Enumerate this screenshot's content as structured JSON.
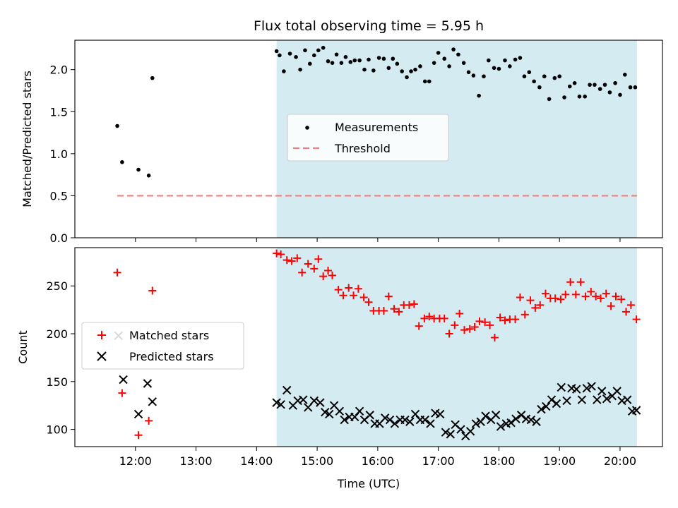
{
  "chart_data": {
    "title": "Flux total observing time = 5.95 h",
    "xlabel": "Time (UTC)",
    "x_unit": "hours UTC",
    "xlim": [
      11.0,
      20.7
    ],
    "xticks": [
      12,
      13,
      14,
      15,
      16,
      17,
      18,
      19,
      20
    ],
    "xtick_labels": [
      "12:00",
      "13:00",
      "14:00",
      "15:00",
      "16:00",
      "17:00",
      "18:00",
      "19:00",
      "20:00"
    ],
    "shaded_region": {
      "x": [
        14.33,
        20.28
      ],
      "color": "#d4ebf2"
    },
    "panels": [
      {
        "type": "scatter",
        "ylabel": "Matched/Predicted stars",
        "ylim": [
          0,
          2.35
        ],
        "yticks": [
          0.0,
          0.5,
          1.0,
          1.5,
          2.0
        ],
        "ytick_labels": [
          "0.0",
          "0.5",
          "1.0",
          "1.5",
          "2.0"
        ],
        "legend": {
          "position": "center",
          "entries": [
            "Measurements",
            "Threshold"
          ]
        },
        "series": [
          {
            "name": "Measurements",
            "marker": "dot",
            "color": "#000000",
            "x": [
              11.7,
              11.78,
              12.05,
              12.22,
              12.28,
              14.33,
              14.38,
              14.45,
              14.55,
              14.65,
              14.72,
              14.8,
              14.88,
              14.95,
              15.02,
              15.1,
              15.18,
              15.25,
              15.32,
              15.4,
              15.47,
              15.55,
              15.62,
              15.7,
              15.78,
              15.85,
              15.93,
              16.02,
              16.1,
              16.18,
              16.25,
              16.32,
              16.4,
              16.48,
              16.55,
              16.62,
              16.7,
              16.78,
              16.85,
              16.93,
              17.0,
              17.1,
              17.18,
              17.25,
              17.33,
              17.42,
              17.5,
              17.58,
              17.67,
              17.75,
              17.83,
              17.92,
              18.0,
              18.1,
              18.18,
              18.27,
              18.35,
              18.42,
              18.5,
              18.58,
              18.67,
              18.75,
              18.83,
              18.92,
              19.0,
              19.08,
              19.17,
              19.25,
              19.33,
              19.42,
              19.5,
              19.58,
              19.67,
              19.75,
              19.83,
              19.92,
              20.0,
              20.08,
              20.17,
              20.25
            ],
            "y": [
              1.33,
              0.9,
              0.81,
              0.74,
              1.9,
              2.22,
              2.17,
              1.98,
              2.19,
              2.15,
              2.0,
              2.23,
              2.07,
              2.17,
              2.23,
              2.26,
              2.1,
              2.08,
              2.18,
              2.08,
              2.15,
              2.09,
              2.11,
              2.11,
              2.0,
              2.12,
              1.99,
              2.14,
              2.13,
              2.02,
              2.13,
              2.07,
              1.98,
              1.91,
              1.98,
              2.0,
              2.04,
              1.86,
              1.86,
              2.08,
              2.2,
              2.13,
              2.04,
              2.24,
              2.18,
              2.08,
              1.97,
              1.93,
              1.69,
              1.92,
              2.11,
              2.02,
              2.01,
              2.11,
              2.04,
              2.12,
              2.14,
              1.92,
              1.97,
              1.86,
              1.79,
              1.92,
              1.65,
              1.9,
              1.92,
              1.67,
              1.8,
              1.84,
              1.68,
              1.68,
              1.82,
              1.82,
              1.77,
              1.82,
              1.73,
              1.84,
              1.7,
              1.94,
              1.79,
              1.79
            ]
          },
          {
            "name": "Threshold",
            "marker": "dashed-line",
            "color": "#f08080",
            "x": [
              11.7,
              20.28
            ],
            "y": [
              0.5,
              0.5
            ]
          }
        ]
      },
      {
        "type": "scatter",
        "ylabel": "Count",
        "ylim": [
          82,
          290
        ],
        "yticks": [
          100,
          150,
          200,
          250
        ],
        "ytick_labels": [
          "100",
          "150",
          "200",
          "250"
        ],
        "legend": {
          "position": "center-left",
          "entries": [
            "Matched stars",
            "Predicted stars"
          ]
        },
        "series": [
          {
            "name": "Matched stars",
            "marker": "plus",
            "color": "#ff0000",
            "x": [
              11.7,
              11.78,
              12.05,
              12.22,
              12.28,
              14.33,
              14.4,
              14.5,
              14.58,
              14.67,
              14.75,
              14.85,
              14.95,
              15.02,
              15.1,
              15.18,
              15.25,
              15.35,
              15.43,
              15.52,
              15.6,
              15.68,
              15.77,
              15.85,
              15.93,
              16.02,
              16.1,
              16.18,
              16.27,
              16.35,
              16.43,
              16.52,
              16.6,
              16.68,
              16.77,
              16.85,
              16.93,
              17.02,
              17.1,
              17.18,
              17.27,
              17.35,
              17.43,
              17.52,
              17.6,
              17.68,
              17.77,
              17.85,
              17.93,
              18.02,
              18.1,
              18.18,
              18.27,
              18.35,
              18.43,
              18.52,
              18.6,
              18.68,
              18.77,
              18.85,
              18.93,
              19.02,
              19.1,
              19.18,
              19.27,
              19.35,
              19.43,
              19.52,
              19.6,
              19.68,
              19.77,
              19.85,
              19.93,
              20.02,
              20.1,
              20.18,
              20.27
            ],
            "y": [
              264,
              138,
              94,
              109,
              245,
              284,
              283,
              277,
              276,
              279,
              264,
              273,
              268,
              278,
              260,
              266,
              261,
              246,
              240,
              248,
              240,
              247,
              238,
              233,
              224,
              224,
              224,
              239,
              226,
              223,
              230,
              230,
              231,
              208,
              216,
              218,
              216,
              216,
              216,
              200,
              209,
              221,
              204,
              205,
              207,
              213,
              212,
              209,
              196,
              217,
              214,
              215,
              215,
              238,
              220,
              235,
              227,
              230,
              242,
              237,
              237,
              236,
              241,
              254,
              241,
              254,
              239,
              244,
              239,
              237,
              242,
              229,
              239,
              236,
              223,
              230,
              215
            ]
          },
          {
            "name": "Predicted stars",
            "marker": "x",
            "color": "#000000",
            "x": [
              11.72,
              11.8,
              12.05,
              12.2,
              12.28,
              14.33,
              14.4,
              14.5,
              14.6,
              14.68,
              14.77,
              14.85,
              14.95,
              15.05,
              15.13,
              15.2,
              15.28,
              15.37,
              15.45,
              15.53,
              15.62,
              15.7,
              15.78,
              15.87,
              15.95,
              16.03,
              16.12,
              16.2,
              16.28,
              16.37,
              16.45,
              16.53,
              16.62,
              16.7,
              16.78,
              16.87,
              16.95,
              17.03,
              17.12,
              17.2,
              17.28,
              17.37,
              17.45,
              17.53,
              17.62,
              17.7,
              17.78,
              17.87,
              17.95,
              18.03,
              18.12,
              18.2,
              18.28,
              18.37,
              18.45,
              18.53,
              18.62,
              18.7,
              18.78,
              18.87,
              18.95,
              19.03,
              19.12,
              19.2,
              19.28,
              19.37,
              19.45,
              19.53,
              19.62,
              19.7,
              19.78,
              19.87,
              19.95,
              20.03,
              20.12,
              20.2,
              20.27
            ],
            "y": [
              198,
              152,
              116,
              148,
              129,
              128,
              126,
              141,
              125,
              130,
              131,
              123,
              130,
              128,
              118,
              116,
              125,
              119,
              110,
              113,
              113,
              119,
              110,
              115,
              106,
              106,
              112,
              110,
              106,
              110,
              110,
              108,
              116,
              110,
              110,
              106,
              117,
              116,
              97,
              95,
              105,
              100,
              93,
              98,
              106,
              108,
              114,
              110,
              115,
              103,
              106,
              107,
              111,
              115,
              111,
              110,
              108,
              121,
              124,
              131,
              127,
              144,
              130,
              143,
              142,
              131,
              143,
              145,
              131,
              140,
              132,
              135,
              140,
              130,
              131,
              119,
              120
            ]
          }
        ]
      }
    ]
  }
}
